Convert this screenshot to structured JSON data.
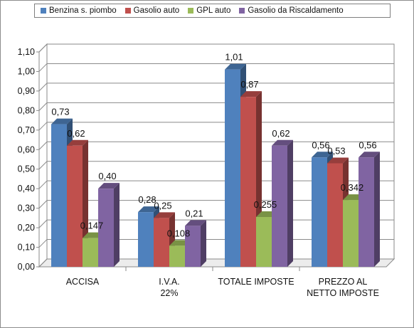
{
  "chart_data": {
    "type": "bar",
    "categories": [
      [
        "ACCISA"
      ],
      [
        "I.V.A.",
        "22%"
      ],
      [
        "TOTALE IMPOSTE"
      ],
      [
        "PREZZO AL",
        "NETTO IMPOSTE"
      ]
    ],
    "series": [
      {
        "name": "Benzina s. piombo",
        "color": "#4F81BD",
        "values": [
          0.73,
          0.28,
          1.01,
          0.56
        ],
        "labels": [
          "0,73",
          "0,28",
          "1,01",
          "0,56"
        ]
      },
      {
        "name": "Gasolio auto",
        "color": "#C0504D",
        "values": [
          0.62,
          0.25,
          0.87,
          0.53
        ],
        "labels": [
          "0,62",
          "0,25",
          "0,87",
          "0,53"
        ]
      },
      {
        "name": "GPL auto",
        "color": "#9BBB59",
        "values": [
          0.147,
          0.108,
          0.255,
          0.342
        ],
        "labels": [
          "0,147",
          "0,108",
          "0,255",
          "0,342"
        ]
      },
      {
        "name": "Gasolio da Riscaldamento",
        "color": "#8064A2",
        "values": [
          0.4,
          0.21,
          0.62,
          0.56
        ],
        "labels": [
          "0,40",
          "0,21",
          "0,62",
          "0,56"
        ]
      }
    ],
    "yticks": [
      "0,00",
      "0,10",
      "0,20",
      "0,30",
      "0,40",
      "0,50",
      "0,60",
      "0,70",
      "0,80",
      "0,90",
      "1,00",
      "1,10"
    ],
    "ylim": [
      0,
      1.1
    ],
    "grid": true,
    "legend_position": "top",
    "style": "3d-clustered-column"
  }
}
